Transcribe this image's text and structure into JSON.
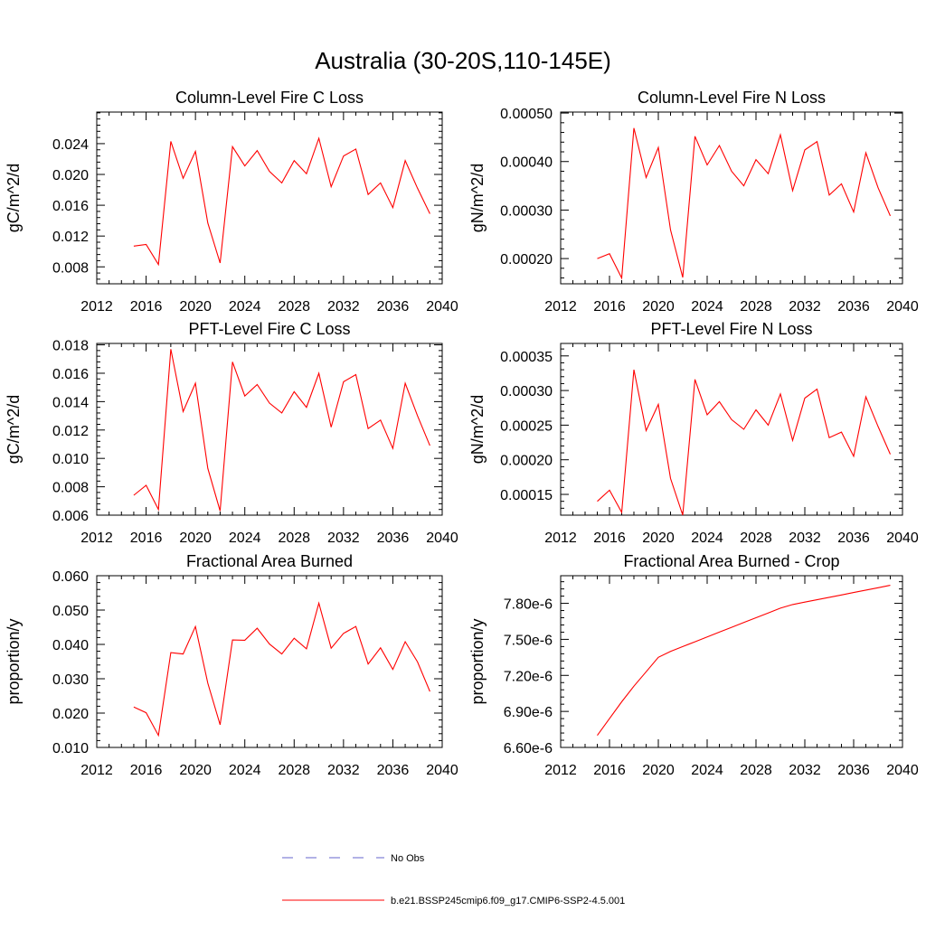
{
  "page": {
    "title": "Australia (30-20S,110-145E)"
  },
  "colors": {
    "model_line": "#ff0000",
    "obs_line": "#6666cc",
    "axis": "#000000"
  },
  "legend": {
    "placement": "bottom-center",
    "items": [
      {
        "label": "No Obs",
        "style": "dashed",
        "color": "#6666cc"
      },
      {
        "label": "b.e21.BSSP245cmip6.f09_g17.CMIP6-SSP2-4.5.001",
        "style": "solid",
        "color": "#ff0000"
      }
    ]
  },
  "chart_data": [
    {
      "type": "line",
      "title": "Column-Level Fire C Loss",
      "xlabel": "",
      "ylabel": "gC/m^2/d",
      "xlim": [
        2012,
        2040
      ],
      "ylim": [
        0.0058,
        0.0281
      ],
      "xticks": [
        "2012",
        "2016",
        "2020",
        "2024",
        "2028",
        "2032",
        "2036",
        "2040"
      ],
      "yticks": [
        "0.008",
        "0.012",
        "0.016",
        "0.020",
        "0.024"
      ],
      "grid": false,
      "x": [
        2015,
        2016,
        2017,
        2018,
        2019,
        2020,
        2021,
        2022,
        2023,
        2024,
        2025,
        2026,
        2027,
        2028,
        2029,
        2030,
        2031,
        2032,
        2033,
        2034,
        2035,
        2036,
        2037,
        2038,
        2039
      ],
      "series": [
        {
          "values": [
            0.0107,
            0.0109,
            0.0083,
            0.0243,
            0.0195,
            0.023,
            0.0137,
            0.0085,
            0.0236,
            0.0211,
            0.0231,
            0.0204,
            0.0189,
            0.0218,
            0.0201,
            0.0247,
            0.0184,
            0.0224,
            0.0233,
            0.0174,
            0.0189,
            0.0157,
            0.0218,
            0.0182,
            0.0149
          ]
        }
      ]
    },
    {
      "type": "line",
      "title": "Column-Level Fire N Loss",
      "xlabel": "",
      "ylabel": "gN/m^2/d",
      "xlim": [
        2012,
        2040
      ],
      "ylim": [
        0.000148,
        0.000502
      ],
      "xticks": [
        "2012",
        "2016",
        "2020",
        "2024",
        "2028",
        "2032",
        "2036",
        "2040"
      ],
      "yticks": [
        "0.00020",
        "0.00030",
        "0.00040",
        "0.00050"
      ],
      "grid": false,
      "x": [
        2015,
        2016,
        2017,
        2018,
        2019,
        2020,
        2021,
        2022,
        2023,
        2024,
        2025,
        2026,
        2027,
        2028,
        2029,
        2030,
        2031,
        2032,
        2033,
        2034,
        2035,
        2036,
        2037,
        2038,
        2039
      ],
      "series": [
        {
          "values": [
            0.0002,
            0.00021,
            0.00016,
            0.000469,
            0.000367,
            0.000429,
            0.000259,
            0.000161,
            0.000452,
            0.000393,
            0.000433,
            0.00038,
            0.00035,
            0.000404,
            0.000375,
            0.000455,
            0.00034,
            0.000424,
            0.000441,
            0.000331,
            0.000354,
            0.000296,
            0.000418,
            0.000346,
            0.000288
          ]
        }
      ]
    },
    {
      "type": "line",
      "title": "PFT-Level Fire C Loss",
      "xlabel": "",
      "ylabel": "gC/m^2/d",
      "xlim": [
        2012,
        2040
      ],
      "ylim": [
        0.006,
        0.0181
      ],
      "xticks": [
        "2012",
        "2016",
        "2020",
        "2024",
        "2028",
        "2032",
        "2036",
        "2040"
      ],
      "yticks": [
        "0.006",
        "0.008",
        "0.010",
        "0.012",
        "0.014",
        "0.016",
        "0.018"
      ],
      "grid": false,
      "x": [
        2015,
        2016,
        2017,
        2018,
        2019,
        2020,
        2021,
        2022,
        2023,
        2024,
        2025,
        2026,
        2027,
        2028,
        2029,
        2030,
        2031,
        2032,
        2033,
        2034,
        2035,
        2036,
        2037,
        2038,
        2039
      ],
      "series": [
        {
          "values": [
            0.0074,
            0.0081,
            0.0064,
            0.0177,
            0.0133,
            0.0153,
            0.0093,
            0.0063,
            0.0168,
            0.0144,
            0.0152,
            0.0139,
            0.0132,
            0.0147,
            0.0136,
            0.016,
            0.0122,
            0.0154,
            0.0159,
            0.0121,
            0.0127,
            0.0107,
            0.0153,
            0.013,
            0.0109
          ]
        }
      ]
    },
    {
      "type": "line",
      "title": "PFT-Level Fire N Loss",
      "xlabel": "",
      "ylabel": "gN/m^2/d",
      "xlim": [
        2012,
        2040
      ],
      "ylim": [
        0.00012,
        0.000368
      ],
      "xticks": [
        "2012",
        "2016",
        "2020",
        "2024",
        "2028",
        "2032",
        "2036",
        "2040"
      ],
      "yticks": [
        "0.00015",
        "0.00020",
        "0.00025",
        "0.00030",
        "0.00035"
      ],
      "grid": false,
      "x": [
        2015,
        2016,
        2017,
        2018,
        2019,
        2020,
        2021,
        2022,
        2023,
        2024,
        2025,
        2026,
        2027,
        2028,
        2029,
        2030,
        2031,
        2032,
        2033,
        2034,
        2035,
        2036,
        2037,
        2038,
        2039
      ],
      "series": [
        {
          "values": [
            0.00014,
            0.000156,
            0.000124,
            0.00033,
            0.000242,
            0.00028,
            0.000173,
            0.00012,
            0.000316,
            0.000265,
            0.000284,
            0.000258,
            0.000244,
            0.000272,
            0.00025,
            0.000295,
            0.000228,
            0.000289,
            0.000302,
            0.000232,
            0.00024,
            0.000205,
            0.000291,
            0.000248,
            0.000208
          ]
        }
      ]
    },
    {
      "type": "line",
      "title": "Fractional Area Burned",
      "xlabel": "",
      "ylabel": "proportion/y",
      "xlim": [
        2012,
        2040
      ],
      "ylim": [
        0.01,
        0.06
      ],
      "xticks": [
        "2012",
        "2016",
        "2020",
        "2024",
        "2028",
        "2032",
        "2036",
        "2040"
      ],
      "yticks": [
        "0.010",
        "0.020",
        "0.030",
        "0.040",
        "0.050",
        "0.060"
      ],
      "grid": false,
      "x": [
        2015,
        2016,
        2017,
        2018,
        2019,
        2020,
        2021,
        2022,
        2023,
        2024,
        2025,
        2026,
        2027,
        2028,
        2029,
        2030,
        2031,
        2032,
        2033,
        2034,
        2035,
        2036,
        2037,
        2038,
        2039
      ],
      "series": [
        {
          "values": [
            0.0218,
            0.0201,
            0.0135,
            0.0376,
            0.0372,
            0.0452,
            0.0287,
            0.0166,
            0.0413,
            0.0412,
            0.0447,
            0.0401,
            0.0372,
            0.0418,
            0.0387,
            0.052,
            0.0389,
            0.0432,
            0.0452,
            0.0343,
            0.039,
            0.0327,
            0.0408,
            0.0349,
            0.0263
          ]
        }
      ]
    },
    {
      "type": "line",
      "title": "Fractional Area Burned - Crop",
      "xlabel": "",
      "ylabel": "proportion/y",
      "xlim": [
        2012,
        2040
      ],
      "ylim": [
        6.6e-06,
        8.03e-06
      ],
      "xticks": [
        "2012",
        "2016",
        "2020",
        "2024",
        "2028",
        "2032",
        "2036",
        "2040"
      ],
      "yticks": [
        "6.60e-6",
        "6.90e-6",
        "7.20e-6",
        "7.50e-6",
        "7.80e-6"
      ],
      "grid": false,
      "x": [
        2015,
        2016,
        2017,
        2018,
        2019,
        2020,
        2021,
        2022,
        2023,
        2024,
        2025,
        2026,
        2027,
        2028,
        2029,
        2030,
        2031,
        2032,
        2033,
        2034,
        2035,
        2036,
        2037,
        2038,
        2039
      ],
      "series": [
        {
          "values": [
            6.7e-06,
            6.84e-06,
            6.98e-06,
            7.11e-06,
            7.23e-06,
            7.35e-06,
            7.4e-06,
            7.44e-06,
            7.48e-06,
            7.52e-06,
            7.56e-06,
            7.6e-06,
            7.64e-06,
            7.68e-06,
            7.72e-06,
            7.76e-06,
            7.79e-06,
            7.81e-06,
            7.83e-06,
            7.85e-06,
            7.87e-06,
            7.89e-06,
            7.91e-06,
            7.93e-06,
            7.95e-06
          ]
        }
      ]
    }
  ]
}
